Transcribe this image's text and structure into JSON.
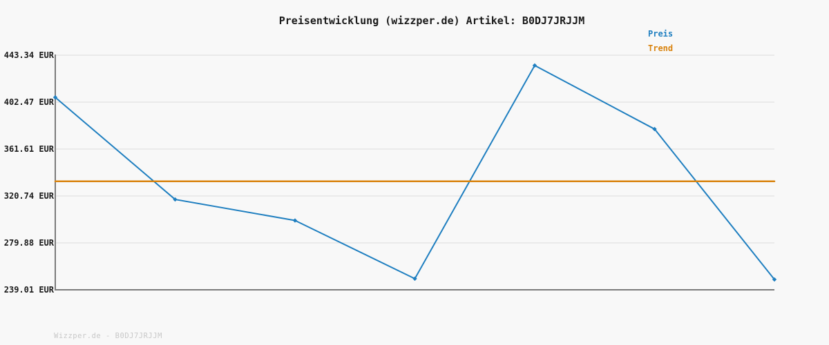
{
  "header": {
    "title": "Preisentwicklung (wizzper.de) Artikel: B0DJ7JRJJM"
  },
  "footer": {
    "watermark": "Wizzper.de - B0DJ7JRJJM"
  },
  "colors": {
    "price_line": "#1f7fc0",
    "trend_line": "#d9830e",
    "grid": "#e6e6e6",
    "axis": "#7b7b7b",
    "label_text": "#1a1a1a",
    "watermark_text": "#c8c8c8",
    "background": "#f8f8f8"
  },
  "chart_data": {
    "type": "line",
    "title": "Preisentwicklung (wizzper.de) Artikel: B0DJ7JRJJM",
    "x": [
      0,
      1,
      2,
      3,
      4,
      5,
      6
    ],
    "x_tick_labels_visible": false,
    "series": [
      {
        "name": "Preis",
        "color": "#1f7fc0",
        "values": [
          406.6,
          317.7,
          299.4,
          248.7,
          434.4,
          379.0,
          248.0
        ],
        "markers": true,
        "line_width": 2
      },
      {
        "name": "Trend",
        "color": "#d9830e",
        "values": [
          333.5,
          333.5,
          333.5,
          333.5,
          333.5,
          333.5,
          333.5
        ],
        "markers": false,
        "line_width": 2.5
      }
    ],
    "ylim": [
      239.01,
      443.34
    ],
    "yticks": [
      443.34,
      402.47,
      361.61,
      320.74,
      279.88,
      239.01
    ],
    "ytick_labels": [
      "443.34 EUR",
      "402.47 EUR",
      "361.61 EUR",
      "320.74 EUR",
      "279.88 EUR",
      "239.01 EUR"
    ],
    "ylabel_unit": "EUR",
    "grid": true,
    "legend_position": "top-right",
    "legend": [
      "Preis",
      "Trend"
    ]
  }
}
